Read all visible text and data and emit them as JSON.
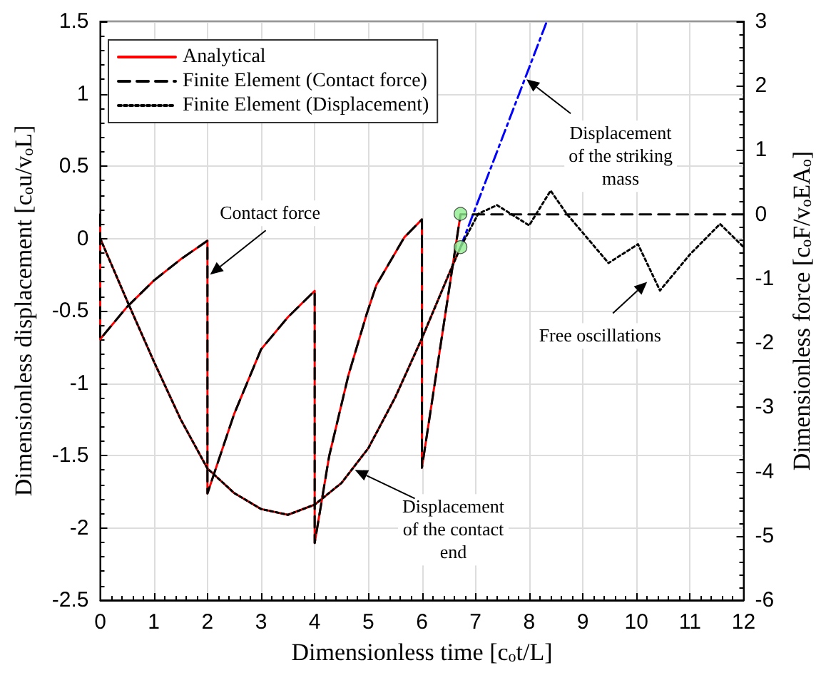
{
  "chart_data": {
    "type": "line",
    "xlabel": "Dimensionless time [c$_{o}$t/L]",
    "ylabel": "Dimensionless displacement [c$_{o}$u/v$_{o}$L]",
    "y2label": "Dimensionless force [c$_{o}$F/v$_{o}$EA$_{o}$]",
    "xlim": [
      0,
      12
    ],
    "xticks": [
      0,
      1,
      2,
      3,
      4,
      5,
      6,
      7,
      8,
      9,
      10,
      11,
      12
    ],
    "ylim": [
      -2.5,
      1.5
    ],
    "yticks": [
      -2.5,
      -2,
      -1.5,
      -1,
      -0.5,
      0,
      0.5,
      1,
      1.5
    ],
    "y2lim": [
      -6,
      3
    ],
    "y2ticks": [
      -6,
      -5,
      -4,
      -3,
      -2,
      -1,
      0,
      1,
      2,
      3
    ],
    "grid": true,
    "legend": "top left",
    "marker": "none",
    "series": [
      {
        "name": "Analytical",
        "axis": "y2",
        "color": "#ff0000",
        "line_style": "solid",
        "x": [
          0,
          0,
          0.5,
          1,
          1.5,
          2,
          2,
          2.5,
          3,
          3.5,
          4,
          4,
          4.27,
          4.63,
          4.97,
          5.15,
          5.67,
          6,
          6,
          6.72
        ],
        "values": [
          0,
          -1.94,
          -1.44,
          -1.03,
          -0.7,
          -0.41,
          -4.34,
          -3.1,
          -2.1,
          -1.6,
          -1.19,
          -5.11,
          -3.76,
          -2.5,
          -1.55,
          -1.1,
          -0.36,
          -0.08,
          -3.94,
          0
        ]
      },
      {
        "axis": "y",
        "color": "#ff0000",
        "line_style": "solid",
        "x": [
          0,
          0.5,
          1,
          1.5,
          2,
          2.5,
          3,
          3.5,
          4,
          4.5,
          5,
          5.5,
          6,
          6.5,
          6.72
        ],
        "values": [
          0,
          -0.43,
          -0.85,
          -1.25,
          -1.59,
          -1.76,
          -1.87,
          -1.91,
          -1.84,
          -1.69,
          -1.45,
          -1.1,
          -0.69,
          -0.25,
          -0.06
        ]
      },
      {
        "name": "Finite Element (Contact force)",
        "axis": "y2",
        "color": "#000000",
        "line_style": "dashed",
        "x": [
          0,
          0,
          0.5,
          1,
          1.5,
          2,
          2,
          2.5,
          3,
          3.5,
          4,
          4,
          4.27,
          4.63,
          4.97,
          5.15,
          5.67,
          6,
          6,
          6.72,
          12
        ],
        "values": [
          0,
          -1.94,
          -1.44,
          -1.03,
          -0.7,
          -0.41,
          -4.34,
          -3.1,
          -2.1,
          -1.6,
          -1.19,
          -5.11,
          -3.76,
          -2.5,
          -1.55,
          -1.1,
          -0.36,
          -0.08,
          -3.94,
          0,
          0
        ]
      },
      {
        "name": "Finite Element (Displacement)",
        "axis": "y",
        "color": "#000000",
        "line_style": "dotted",
        "x": [
          0,
          0.5,
          1,
          1.5,
          2,
          2.5,
          3,
          3.5,
          4,
          4.5,
          5,
          5.5,
          6,
          6.5,
          6.72,
          7.05,
          7.4,
          8.0,
          8.4,
          8.7,
          9.48,
          10.03,
          10.44,
          11.0,
          11.56,
          12
        ],
        "values": [
          0,
          -0.43,
          -0.85,
          -1.25,
          -1.59,
          -1.76,
          -1.87,
          -1.91,
          -1.84,
          -1.69,
          -1.45,
          -1.1,
          -0.69,
          -0.25,
          -0.06,
          0.17,
          0.23,
          0.09,
          0.33,
          0.17,
          -0.17,
          -0.04,
          -0.36,
          -0.11,
          0.1,
          -0.06
        ]
      },
      {
        "axis": "y",
        "color": "#0000ff",
        "line_style": "dashdot",
        "x": [
          6.72,
          8.33
        ],
        "values": [
          -0.06,
          1.5
        ]
      },
      {
        "type": "scatter",
        "axis": "y",
        "color": "#90ee90",
        "marker": "circle",
        "x": [
          6.72,
          6.72
        ],
        "values": [
          0.17,
          -0.06
        ]
      }
    ],
    "annotations": [
      {
        "text": "Contact force",
        "x": 2.05,
        "y": -0.25
      },
      {
        "text": "Displacement of the striking mass",
        "x": 7.95,
        "y": 1.1
      },
      {
        "text": "Free oscillations",
        "x": 10.2,
        "y": -0.3
      },
      {
        "text": "Displacement of the contact end",
        "x": 4.75,
        "y": -1.6
      }
    ]
  }
}
